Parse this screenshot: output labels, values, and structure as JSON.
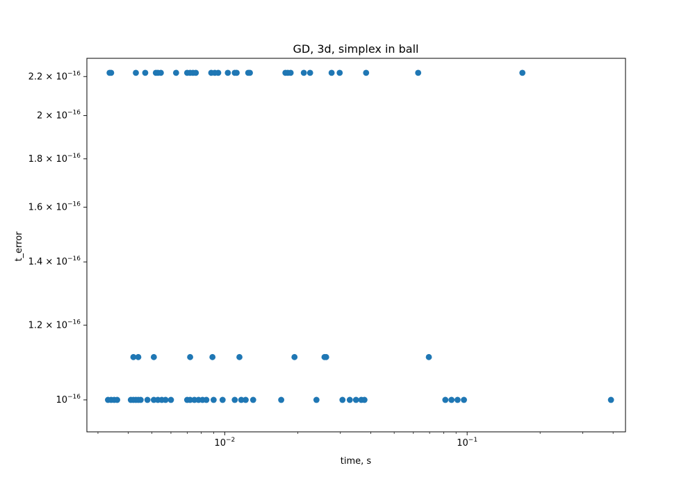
{
  "chart_data": {
    "type": "scatter",
    "title": "GD, 3d, simplex in ball",
    "xlabel": "time, s",
    "ylabel": "t_error",
    "xscale": "log",
    "yscale": "log",
    "xlim": [
      0.0027,
      0.45
    ],
    "ylim": [
      9.25e-17,
      2.3e-16
    ],
    "grid": false,
    "marker_color": "#1f77b4",
    "x_ticks": [
      {
        "value": 0.01,
        "base": "10",
        "exp": "−2"
      },
      {
        "value": 0.1,
        "base": "10",
        "exp": "−1"
      }
    ],
    "y_ticks": [
      {
        "value": 1e-16,
        "base": "10",
        "exp": "−16"
      },
      {
        "value": 1.2e-16,
        "base": "1.2 × 10",
        "exp": "−16"
      },
      {
        "value": 1.4e-16,
        "base": "1.4 × 10",
        "exp": "−16"
      },
      {
        "value": 1.6e-16,
        "base": "1.6 × 10",
        "exp": "−16"
      },
      {
        "value": 1.8e-16,
        "base": "1.8 × 10",
        "exp": "−16"
      },
      {
        "value": 2e-16,
        "base": "2 × 10",
        "exp": "−16"
      },
      {
        "value": 2.2e-16,
        "base": "2.2 × 10",
        "exp": "−16"
      }
    ],
    "series": [
      {
        "points": [
          [
            0.00335,
            2.22e-16
          ],
          [
            0.0034,
            2.22e-16
          ],
          [
            0.0043,
            2.22e-16
          ],
          [
            0.0047,
            2.22e-16
          ],
          [
            0.0052,
            2.22e-16
          ],
          [
            0.0053,
            2.22e-16
          ],
          [
            0.00545,
            2.22e-16
          ],
          [
            0.0063,
            2.22e-16
          ],
          [
            0.007,
            2.22e-16
          ],
          [
            0.0072,
            2.22e-16
          ],
          [
            0.0074,
            2.22e-16
          ],
          [
            0.0076,
            2.22e-16
          ],
          [
            0.0088,
            2.22e-16
          ],
          [
            0.0091,
            2.22e-16
          ],
          [
            0.0094,
            2.22e-16
          ],
          [
            0.0103,
            2.22e-16
          ],
          [
            0.011,
            2.22e-16
          ],
          [
            0.0112,
            2.22e-16
          ],
          [
            0.0125,
            2.22e-16
          ],
          [
            0.0127,
            2.22e-16
          ],
          [
            0.0178,
            2.22e-16
          ],
          [
            0.0182,
            2.22e-16
          ],
          [
            0.0187,
            2.22e-16
          ],
          [
            0.0212,
            2.22e-16
          ],
          [
            0.0225,
            2.22e-16
          ],
          [
            0.0276,
            2.22e-16
          ],
          [
            0.0298,
            2.22e-16
          ],
          [
            0.0383,
            2.22e-16
          ],
          [
            0.0628,
            2.22e-16
          ],
          [
            0.169,
            2.22e-16
          ],
          [
            0.0042,
            1.11e-16
          ],
          [
            0.0044,
            1.11e-16
          ],
          [
            0.0051,
            1.11e-16
          ],
          [
            0.0072,
            1.11e-16
          ],
          [
            0.0089,
            1.11e-16
          ],
          [
            0.0115,
            1.11e-16
          ],
          [
            0.0194,
            1.11e-16
          ],
          [
            0.0258,
            1.11e-16
          ],
          [
            0.0262,
            1.11e-16
          ],
          [
            0.0695,
            1.11e-16
          ],
          [
            0.0033,
            1e-16
          ],
          [
            0.0034,
            1e-16
          ],
          [
            0.0035,
            1e-16
          ],
          [
            0.0036,
            1e-16
          ],
          [
            0.0041,
            1e-16
          ],
          [
            0.0042,
            1e-16
          ],
          [
            0.0043,
            1e-16
          ],
          [
            0.0044,
            1e-16
          ],
          [
            0.0045,
            1e-16
          ],
          [
            0.0048,
            1e-16
          ],
          [
            0.0051,
            1e-16
          ],
          [
            0.0053,
            1e-16
          ],
          [
            0.0055,
            1e-16
          ],
          [
            0.0057,
            1e-16
          ],
          [
            0.006,
            1e-16
          ],
          [
            0.007,
            1e-16
          ],
          [
            0.0072,
            1e-16
          ],
          [
            0.0075,
            1e-16
          ],
          [
            0.0078,
            1e-16
          ],
          [
            0.0081,
            1e-16
          ],
          [
            0.0084,
            1e-16
          ],
          [
            0.009,
            1e-16
          ],
          [
            0.0098,
            1e-16
          ],
          [
            0.011,
            1e-16
          ],
          [
            0.0117,
            1e-16
          ],
          [
            0.0122,
            1e-16
          ],
          [
            0.0131,
            1e-16
          ],
          [
            0.0171,
            1e-16
          ],
          [
            0.0239,
            1e-16
          ],
          [
            0.0306,
            1e-16
          ],
          [
            0.0328,
            1e-16
          ],
          [
            0.0348,
            1e-16
          ],
          [
            0.0366,
            1e-16
          ],
          [
            0.0377,
            1e-16
          ],
          [
            0.0813,
            1e-16
          ],
          [
            0.0862,
            1e-16
          ],
          [
            0.0913,
            1e-16
          ],
          [
            0.097,
            1e-16
          ],
          [
            0.392,
            1e-16
          ]
        ]
      }
    ]
  }
}
